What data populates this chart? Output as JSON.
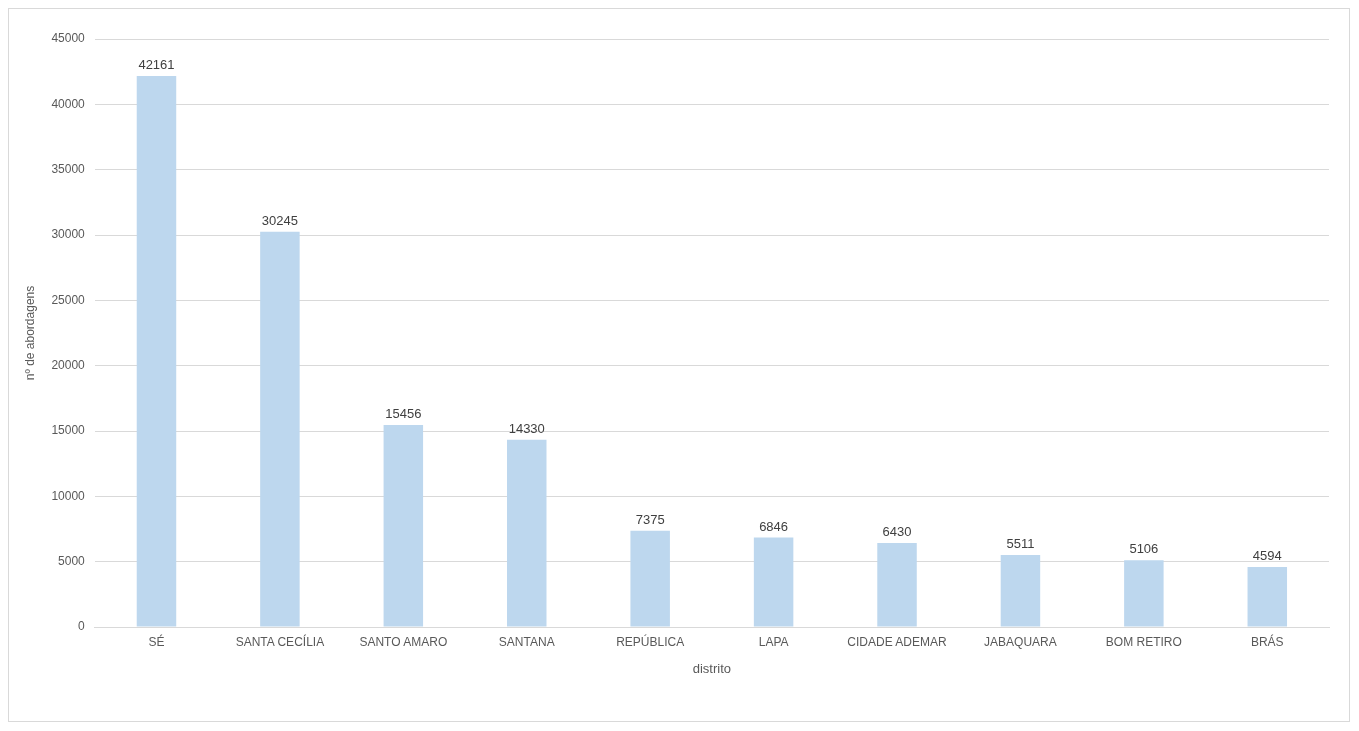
{
  "chart_data": {
    "type": "bar",
    "xlabel": "distrito",
    "ylabel": "nº de abordagens",
    "categories": [
      "SÉ",
      "SANTA CECÍLIA",
      "SANTO AMARO",
      "SANTANA",
      "REPÚBLICA",
      "LAPA",
      "CIDADE ADEMAR",
      "JABAQUARA",
      "BOM RETIRO",
      "BRÁS"
    ],
    "values": [
      42161,
      30245,
      15456,
      14330,
      7375,
      6846,
      6430,
      5511,
      5106,
      4594
    ],
    "color": "#bdd7ee",
    "ylim": [
      0,
      45000
    ],
    "yticks": [
      0,
      5000,
      10000,
      15000,
      20000,
      25000,
      30000,
      35000,
      40000,
      45000
    ],
    "grid": "y",
    "legend": false,
    "data_labels": true
  }
}
